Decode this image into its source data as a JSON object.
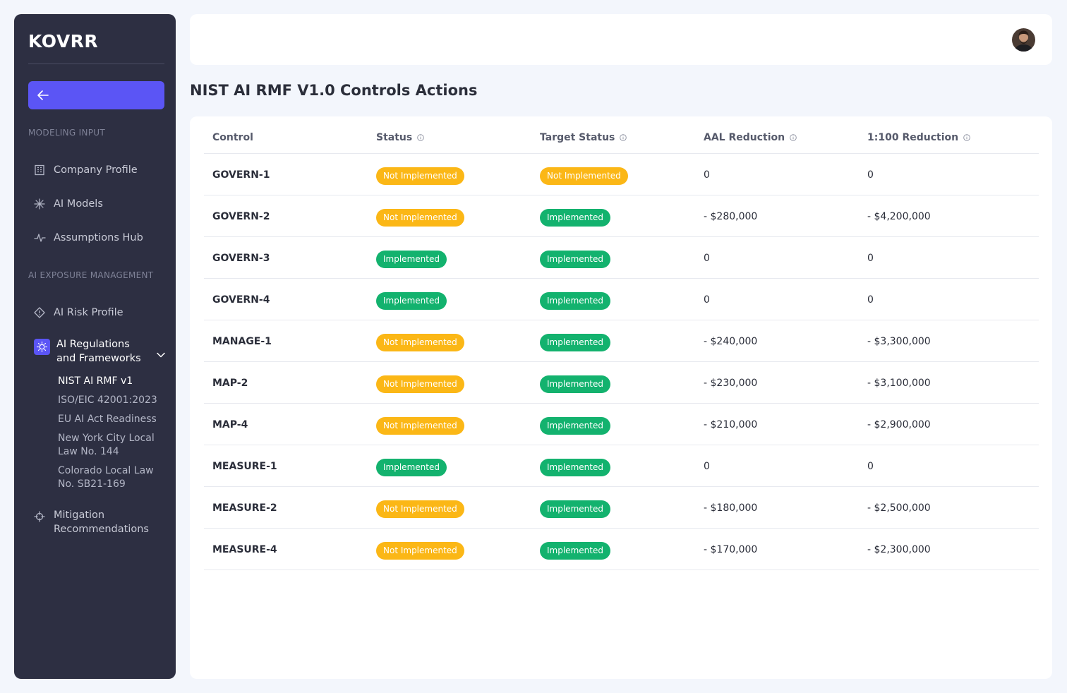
{
  "app": {
    "logo": "KOVRR"
  },
  "sidebar": {
    "sections": [
      {
        "label": "MODELING INPUT"
      },
      {
        "label": "AI EXPOSURE MANAGEMENT"
      }
    ],
    "items": [
      {
        "label": "Company Profile",
        "icon": "building-icon"
      },
      {
        "label": "AI Models",
        "icon": "sparkle-icon"
      },
      {
        "label": "Assumptions Hub",
        "icon": "pulse-icon"
      },
      {
        "label": "AI Risk Profile",
        "icon": "diamond-icon"
      },
      {
        "label": "AI Regulations and Frameworks",
        "icon": "sun-icon"
      },
      {
        "label": "Mitigation Recommendations",
        "icon": "crosshair-icon"
      }
    ],
    "sub_items": [
      {
        "label": "NIST AI RMF v1",
        "active": true
      },
      {
        "label": "ISO/EIC 42001:2023",
        "active": false
      },
      {
        "label": "EU AI Act Readiness",
        "active": false
      },
      {
        "label": "New York City Local Law No. 144",
        "active": false
      },
      {
        "label": "Colorado Local Law No. SB21-169",
        "active": false
      }
    ]
  },
  "page": {
    "title": "NIST AI RMF V1.0 Controls Actions"
  },
  "table": {
    "headers": [
      "Control",
      "Status",
      "Target Status",
      "AAL Reduction",
      "1:100 Reduction"
    ],
    "rows": [
      {
        "control": "GOVERN-1",
        "status": "Not Implemented",
        "target": "Not Implemented",
        "aal": "0",
        "r100": "0"
      },
      {
        "control": "GOVERN-2",
        "status": "Not Implemented",
        "target": "Implemented",
        "aal": "- $280,000",
        "r100": "- $4,200,000"
      },
      {
        "control": "GOVERN-3",
        "status": "Implemented",
        "target": "Implemented",
        "aal": "0",
        "r100": "0"
      },
      {
        "control": "GOVERN-4",
        "status": "Implemented",
        "target": "Implemented",
        "aal": "0",
        "r100": "0"
      },
      {
        "control": "MANAGE-1",
        "status": "Not Implemented",
        "target": "Implemented",
        "aal": "- $240,000",
        "r100": "- $3,300,000"
      },
      {
        "control": "MAP-2",
        "status": "Not Implemented",
        "target": "Implemented",
        "aal": "- $230,000",
        "r100": "- $3,100,000"
      },
      {
        "control": "MAP-4",
        "status": "Not Implemented",
        "target": "Implemented",
        "aal": "- $210,000",
        "r100": "- $2,900,000"
      },
      {
        "control": "MEASURE-1",
        "status": "Implemented",
        "target": "Implemented",
        "aal": "0",
        "r100": "0"
      },
      {
        "control": "MEASURE-2",
        "status": "Not Implemented",
        "target": "Implemented",
        "aal": "- $180,000",
        "r100": "- $2,500,000"
      },
      {
        "control": "MEASURE-4",
        "status": "Not Implemented",
        "target": "Implemented",
        "aal": "- $170,000",
        "r100": "- $2,300,000"
      }
    ]
  },
  "colors": {
    "sidebar_bg": "#2d2f42",
    "accent": "#5b55f5",
    "not_implemented": "#fbb716",
    "implemented": "#13b26e"
  }
}
